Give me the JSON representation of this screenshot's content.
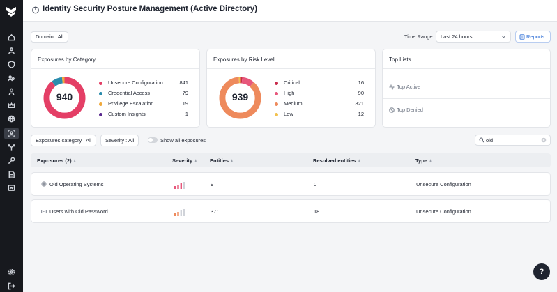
{
  "header": {
    "title": "Identity Security Posture Management (Active Directory)"
  },
  "filters": {
    "domain_label": "Domain",
    "domain_value": "All",
    "time_range_label": "Time Range",
    "time_range_value": "Last 24 hours",
    "reports_label": "Reports"
  },
  "category_card": {
    "title": "Exposures by Category",
    "total": "940",
    "items": [
      {
        "label": "Unsecure Configuration",
        "value": "841",
        "count": 841,
        "color": "#e43f66"
      },
      {
        "label": "Credential Access",
        "value": "79",
        "count": 79,
        "color": "#2b8cad"
      },
      {
        "label": "Privilege Escalation",
        "value": "19",
        "count": 19,
        "color": "#f0a93c"
      },
      {
        "label": "Custom Insights",
        "value": "1",
        "count": 1,
        "color": "#5a2a8f"
      }
    ]
  },
  "risk_card": {
    "title": "Exposures by Risk Level",
    "total": "939",
    "items": [
      {
        "label": "Critical",
        "value": "16",
        "count": 16,
        "color": "#c82b4b"
      },
      {
        "label": "High",
        "value": "90",
        "count": 90,
        "color": "#e7577b"
      },
      {
        "label": "Medium",
        "value": "821",
        "count": 821,
        "color": "#ee8a5c"
      },
      {
        "label": "Low",
        "value": "12",
        "count": 12,
        "color": "#f2c14e"
      }
    ]
  },
  "top_lists": {
    "title": "Top Lists",
    "items": [
      {
        "label": "Top Active",
        "icon": "activity-icon"
      },
      {
        "label": "Top Denied",
        "icon": "denied-icon"
      }
    ]
  },
  "toolbar": {
    "category_label": "Exposures category",
    "category_value": "All",
    "severity_label": "Severity",
    "severity_value": "All",
    "show_all_label": "Show all exposures",
    "search_value": "old"
  },
  "table": {
    "columns": [
      "Exposures (2)",
      "Severity",
      "Entities",
      "Resolved entities",
      "Type"
    ],
    "rows": [
      {
        "name": "Old Operating Systems",
        "icon": "os-icon",
        "severity": "High",
        "entities": "9",
        "resolved": "0",
        "type": "Unsecure Configuration"
      },
      {
        "name": "Users with Old Password",
        "icon": "password-icon",
        "severity": "Medium",
        "entities": "371",
        "resolved": "18",
        "type": "Unsecure Configuration"
      }
    ]
  },
  "sidebar": {
    "items": [
      "home-icon",
      "user-icon",
      "shield-icon",
      "users-icon",
      "person-icon",
      "crown-icon",
      "globe-icon",
      "identity-scan-icon",
      "network-icon",
      "key-icon",
      "document-icon",
      "report-icon"
    ],
    "bottom": [
      "settings-icon",
      "logout-icon"
    ]
  },
  "help": {
    "label": "?"
  }
}
